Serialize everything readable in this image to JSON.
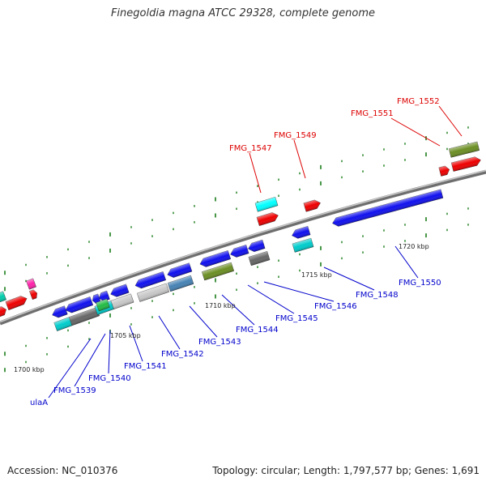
{
  "title": "Finegoldia magna ATCC 29328, complete genome",
  "footer": {
    "accession": "Accession: NC_010376",
    "topology": "Topology: circular; Length: 1,797,577 bp; Genes: 1,691"
  },
  "colors": {
    "backbone": "#8a8a8a",
    "tick": "#1a7d1a",
    "upper_label": "#dd0000",
    "lower_label": "#0000cc",
    "scale_text": "#222222"
  },
  "scale_labels": [
    "1700 kbp",
    "1705 kbp",
    "1710 kbp",
    "1715 kbp",
    "1720 kbp"
  ],
  "upper_genes": [
    "FMG_1547",
    "FMG_1549",
    "FMG_1551",
    "FMG_1552"
  ],
  "lower_genes": [
    "ulaA",
    "FMG_1539",
    "FMG_1540",
    "FMG_1541",
    "FMG_1542",
    "FMG_1543",
    "FMG_1544",
    "FMG_1545",
    "FMG_1546",
    "FMG_1548",
    "FMG_1550"
  ]
}
